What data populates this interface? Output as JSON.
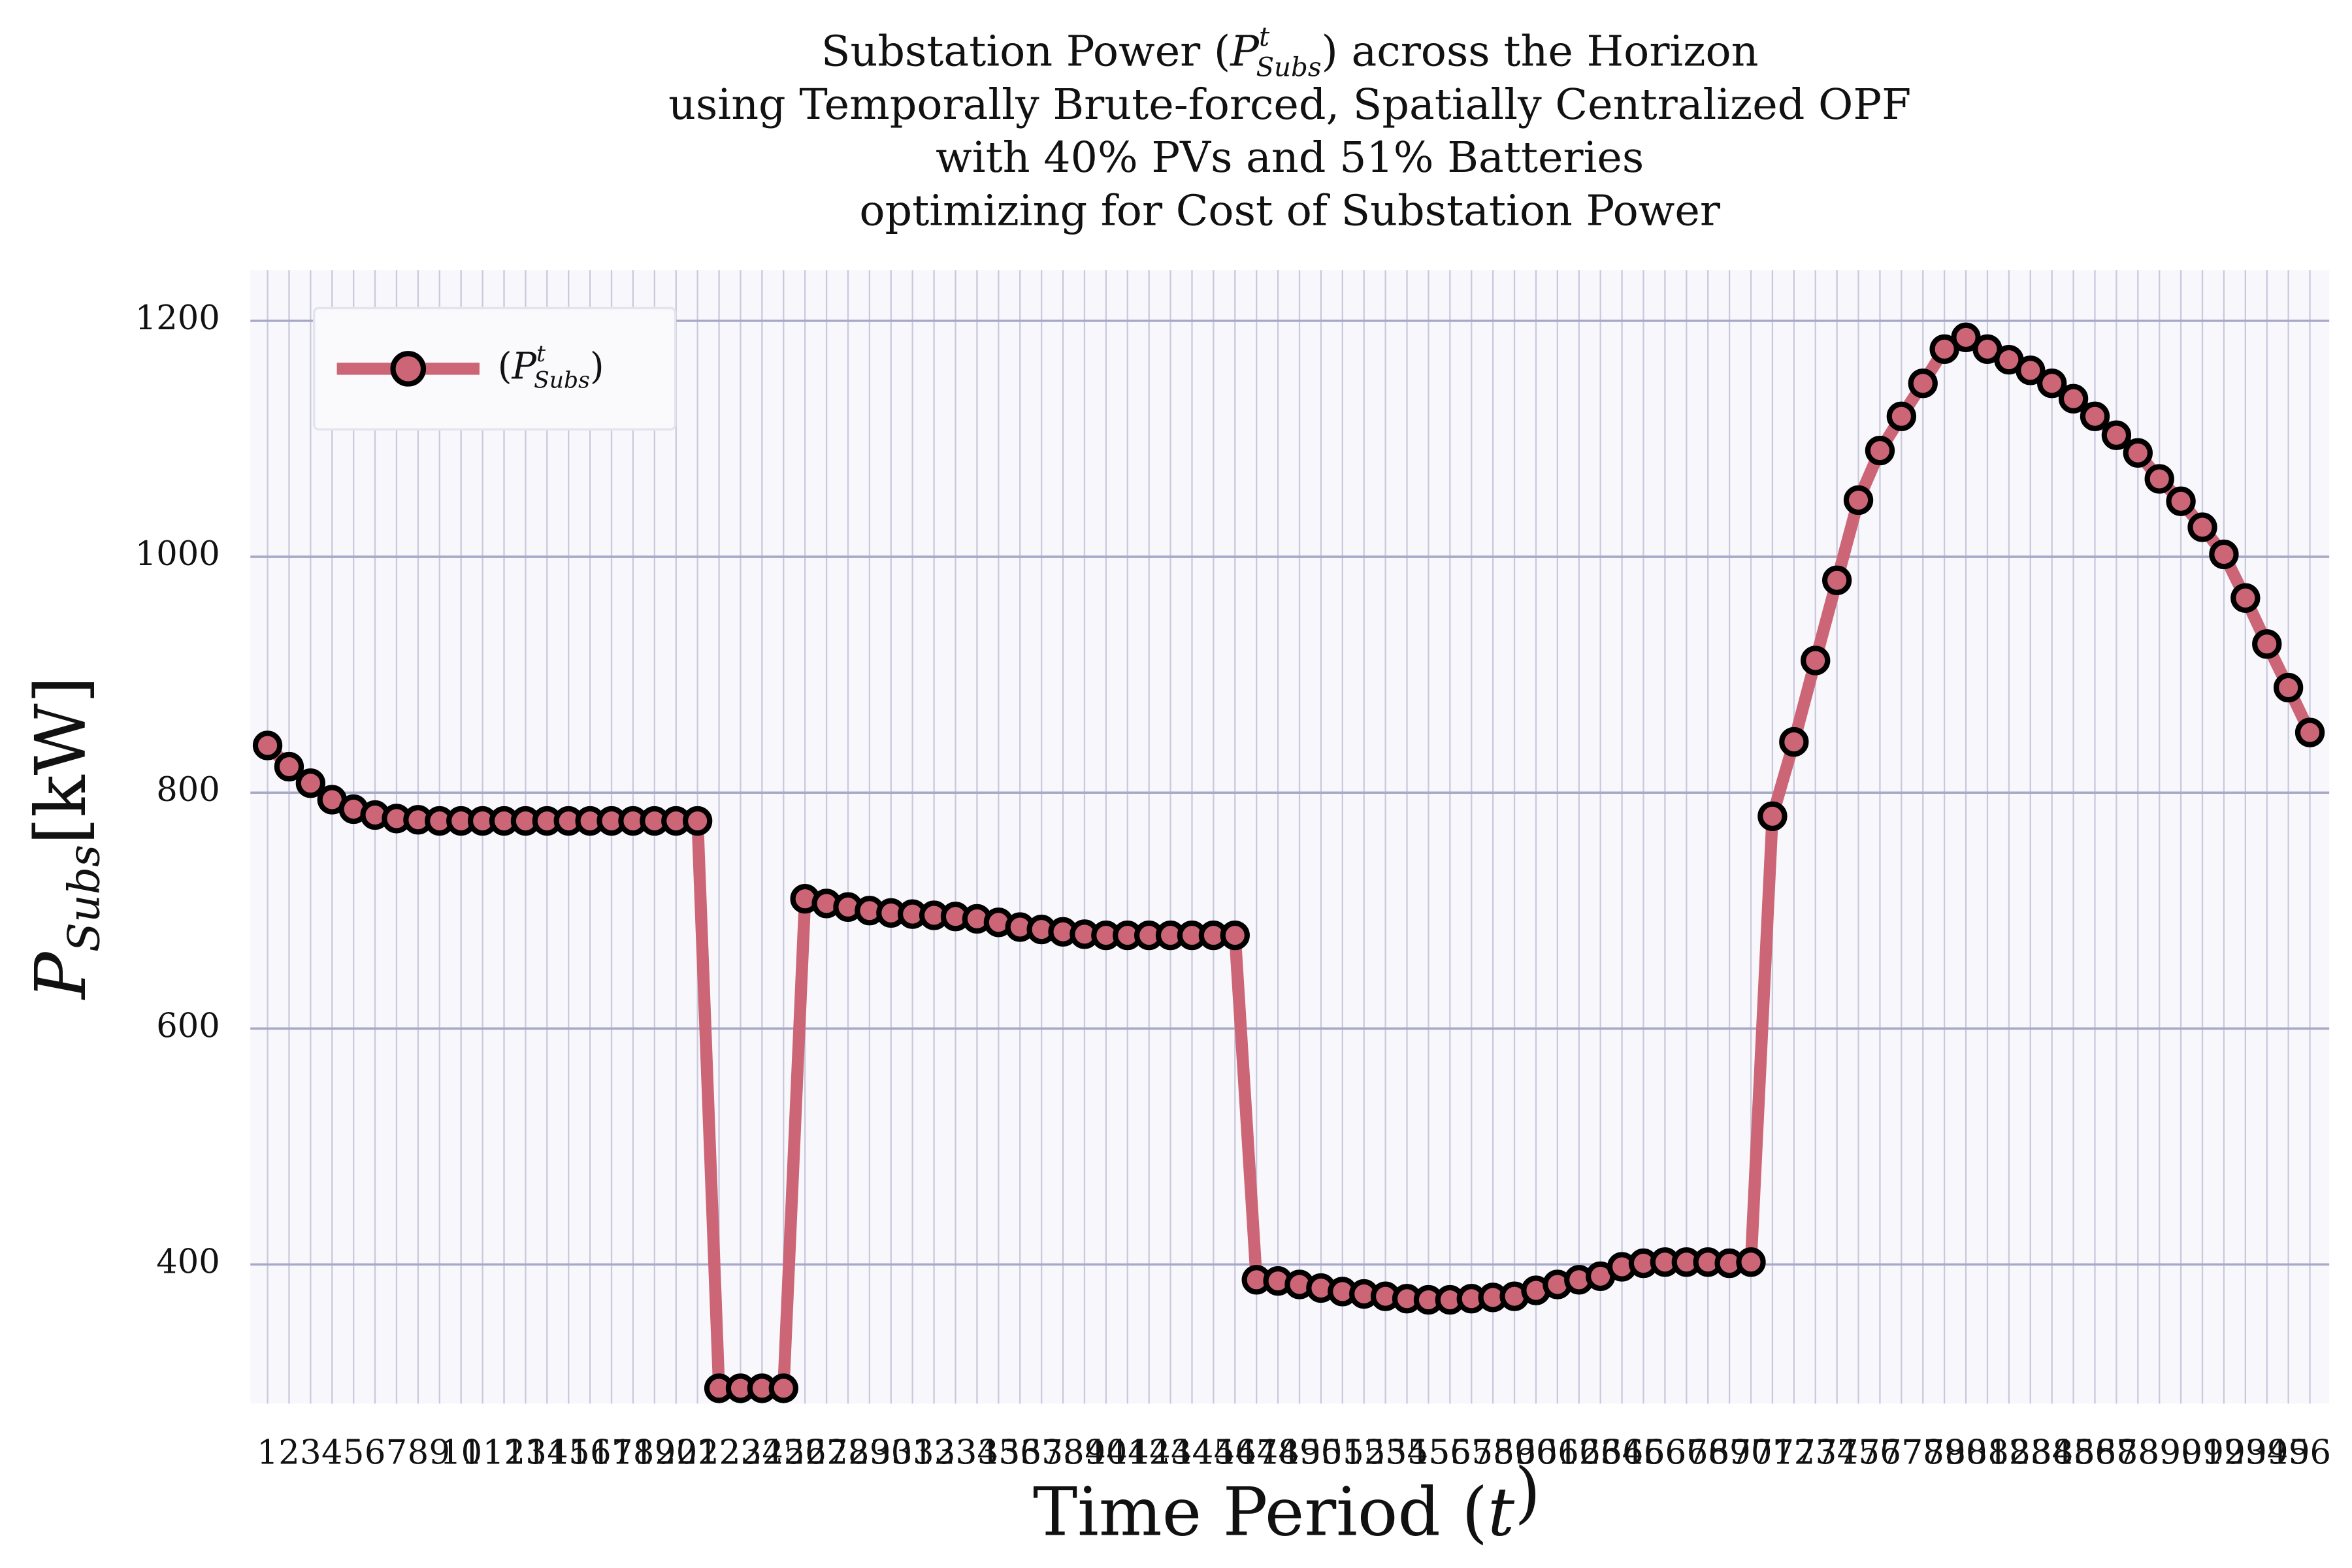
{
  "chart_data": {
    "type": "line",
    "title": [
      {
        "before": "Substation Power (",
        "symbol": "P",
        "sup": "t",
        "sub": "Subs",
        "after": ") across the Horizon"
      },
      "using Temporally Brute-forced, Spatially Centralized OPF",
      "with 40% PVs and 51% Batteries",
      "optimizing for Cost of Substation Power"
    ],
    "xlabel": {
      "before": "Time Period (",
      "symbol": "t",
      "after": ")"
    },
    "ylabel": {
      "symbol": "P",
      "sub": "Subs",
      "after": "[kW]"
    },
    "x": [
      1,
      2,
      3,
      4,
      5,
      6,
      7,
      8,
      9,
      10,
      11,
      12,
      13,
      14,
      15,
      16,
      17,
      18,
      19,
      20,
      21,
      22,
      23,
      24,
      25,
      26,
      27,
      28,
      29,
      30,
      31,
      32,
      33,
      34,
      35,
      36,
      37,
      38,
      39,
      40,
      41,
      42,
      43,
      44,
      45,
      46,
      47,
      48,
      49,
      50,
      51,
      52,
      53,
      54,
      55,
      56,
      57,
      58,
      59,
      60,
      61,
      62,
      63,
      64,
      65,
      66,
      67,
      68,
      69,
      70,
      71,
      72,
      73,
      74,
      75,
      76,
      77,
      78,
      79,
      80,
      81,
      82,
      83,
      84,
      85,
      86,
      87,
      88,
      89,
      90,
      91,
      92,
      93,
      94,
      95,
      96
    ],
    "series": [
      {
        "name": {
          "before": "(",
          "symbol": "P",
          "sup": "t",
          "sub": "Subs",
          "after": ")"
        },
        "color": "#cc6677",
        "values": [
          840,
          822,
          808,
          794,
          786,
          781,
          778,
          777,
          776,
          776,
          776,
          776,
          776,
          776,
          776,
          776,
          776,
          776,
          776,
          776,
          776,
          295,
          295,
          295,
          295,
          710,
          706,
          703,
          700,
          698,
          697,
          696,
          695,
          693,
          690,
          686,
          684,
          682,
          680,
          679,
          679,
          679,
          679,
          679,
          679,
          679,
          387,
          386,
          383,
          380,
          377,
          375,
          373,
          371,
          370,
          370,
          371,
          372,
          373,
          378,
          383,
          387,
          390,
          398,
          401,
          402,
          402,
          402,
          401,
          402,
          780,
          843,
          912,
          980,
          1048,
          1090,
          1119,
          1147,
          1176,
          1186,
          1176,
          1167,
          1158,
          1147,
          1134,
          1119,
          1103,
          1088,
          1066,
          1047,
          1025,
          1002,
          965,
          926,
          889,
          851
        ]
      }
    ],
    "xlim": [
      0.2,
      96.9
    ],
    "ylim": [
      282,
      1243
    ],
    "xticks": [
      1,
      2,
      3,
      4,
      5,
      6,
      7,
      8,
      9,
      10,
      11,
      12,
      13,
      14,
      15,
      16,
      17,
      18,
      19,
      20,
      21,
      22,
      23,
      24,
      25,
      26,
      27,
      28,
      29,
      30,
      31,
      32,
      33,
      34,
      35,
      36,
      37,
      38,
      39,
      40,
      41,
      42,
      43,
      44,
      45,
      46,
      47,
      48,
      49,
      50,
      51,
      52,
      53,
      54,
      55,
      56,
      57,
      58,
      59,
      60,
      61,
      62,
      63,
      64,
      65,
      66,
      67,
      68,
      69,
      70,
      71,
      72,
      73,
      74,
      75,
      76,
      77,
      78,
      79,
      80,
      81,
      82,
      83,
      84,
      85,
      86,
      87,
      88,
      89,
      90,
      91,
      92,
      93,
      94,
      95,
      96
    ],
    "yticks": [
      400,
      600,
      800,
      1000,
      1200
    ],
    "grid": true,
    "legend": "upper left"
  }
}
